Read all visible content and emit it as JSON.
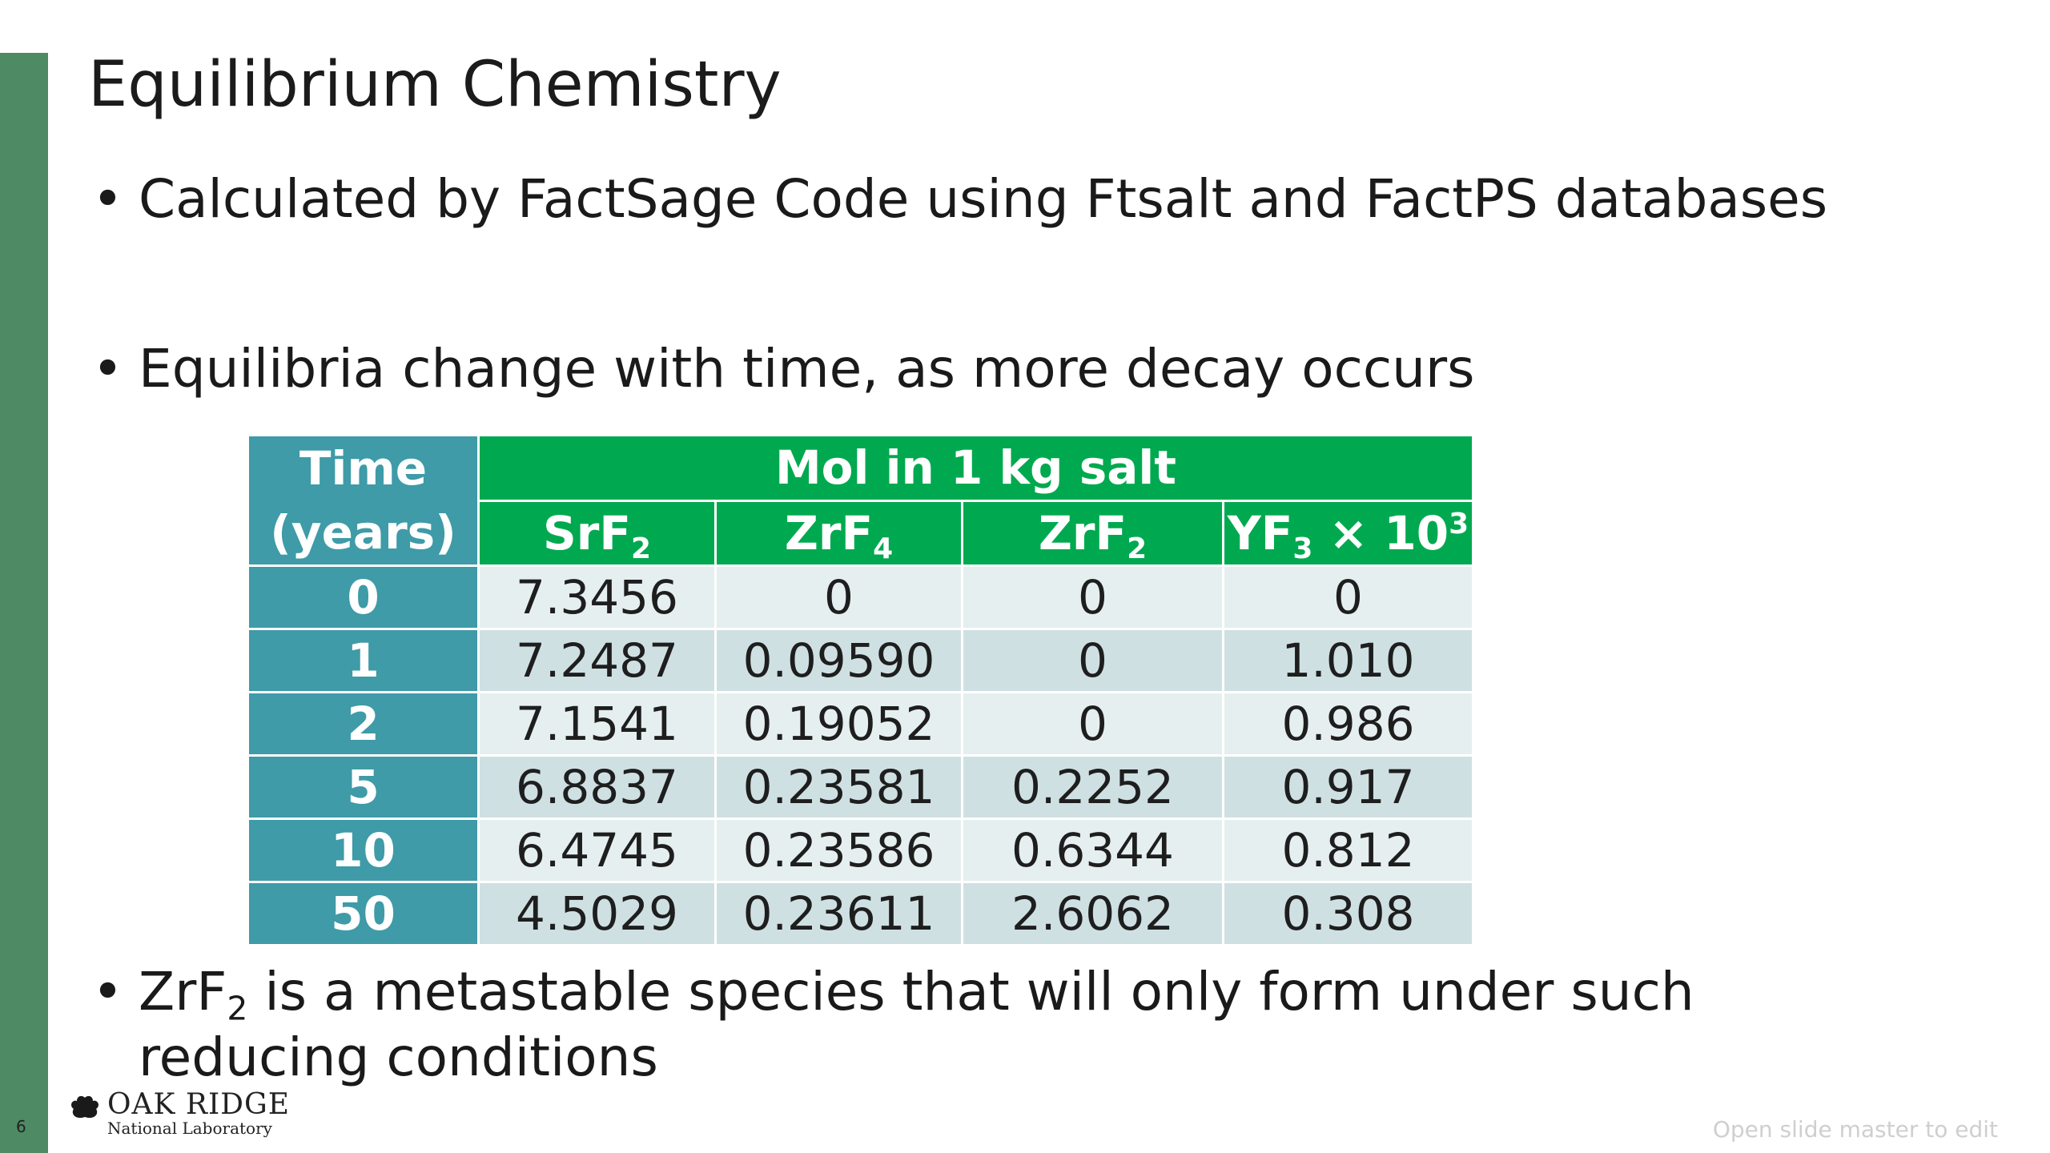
{
  "slide": {
    "number": "6",
    "title": "Equilibrium Chemistry",
    "footer_note": "Open slide master to edit"
  },
  "bullets": [
    {
      "text": "Calculated by FactSage Code using Ftsalt and FactPS databases"
    },
    {
      "text": "Equilibria change with time, as more decay occurs"
    },
    {
      "prefix": "ZrF",
      "sub": "2",
      "rest": " is a metastable species that will only form under such reducing conditions"
    }
  ],
  "table": {
    "time_header": "Time (years)",
    "group_header": "Mol in 1 kg salt",
    "columns": [
      {
        "base": "SrF",
        "sub": "2",
        "suffix": "",
        "sup": ""
      },
      {
        "base": "ZrF",
        "sub": "4",
        "suffix": "",
        "sup": ""
      },
      {
        "base": "ZrF",
        "sub": "2",
        "suffix": "",
        "sup": ""
      },
      {
        "base": "YF",
        "sub": "3",
        "suffix": " × 10",
        "sup": "3"
      }
    ],
    "rows": [
      {
        "time": "0",
        "values": [
          "7.3456",
          "0",
          "0",
          "0"
        ]
      },
      {
        "time": "1",
        "values": [
          "7.2487",
          "0.09590",
          "0",
          "1.010"
        ]
      },
      {
        "time": "2",
        "values": [
          "7.1541",
          "0.19052",
          "0",
          "0.986"
        ]
      },
      {
        "time": "5",
        "values": [
          "6.8837",
          "0.23581",
          "0.2252",
          "0.917"
        ]
      },
      {
        "time": "10",
        "values": [
          "6.4745",
          "0.23586",
          "0.6344",
          "0.812"
        ]
      },
      {
        "time": "50",
        "values": [
          "4.5029",
          "0.23611",
          "2.6062",
          "0.308"
        ]
      }
    ]
  },
  "logo": {
    "icon": "oak-leaf-icon",
    "main": "OAK RIDGE",
    "sub": "National Laboratory"
  },
  "colors": {
    "sidebar": "#4e8a63",
    "time_column": "#3e9ba7",
    "header_green": "#00a94f",
    "row_light": "#e6efef",
    "row_dark": "#cfe0e3"
  }
}
